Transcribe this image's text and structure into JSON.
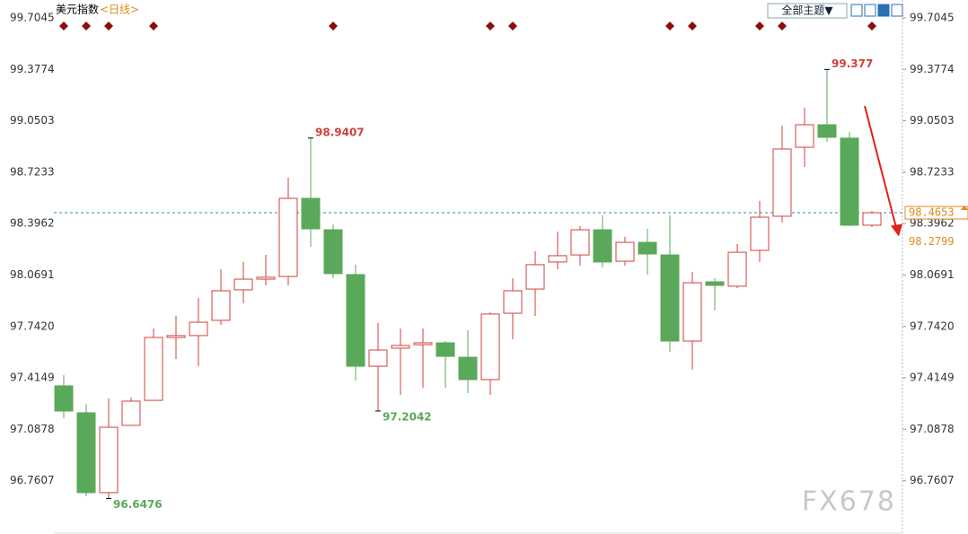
{
  "chart_data": {
    "type": "candlestick",
    "title": "美元指数",
    "subtitle": "<日线>",
    "categories": [
      null,
      null,
      null,
      null,
      null,
      null,
      null,
      null,
      null,
      null,
      null,
      null,
      null,
      null,
      null,
      null,
      null,
      null,
      null,
      null,
      null,
      null,
      null,
      null,
      null,
      null,
      null,
      null,
      null,
      null,
      null,
      null,
      null,
      null,
      null,
      null,
      null
    ],
    "open": [
      97.364,
      97.193,
      96.685,
      97.113,
      97.272,
      97.672,
      97.684,
      97.781,
      97.975,
      98.043,
      98.06,
      98.557,
      98.357,
      98.072,
      97.489,
      97.604,
      97.626,
      97.638,
      97.546,
      97.404,
      97.826,
      97.98,
      98.152,
      98.197,
      98.357,
      98.157,
      98.277,
      98.197,
      97.649,
      98.026,
      97.998,
      98.226,
      98.443,
      98.882,
      99.025,
      98.94,
      98.386
    ],
    "high": [
      97.432,
      97.25,
      97.284,
      97.29,
      97.729,
      97.809,
      97.923,
      98.106,
      98.152,
      98.197,
      98.688,
      98.9407,
      98.391,
      98.135,
      97.764,
      97.729,
      97.729,
      97.649,
      97.718,
      97.832,
      98.049,
      98.22,
      98.346,
      98.38,
      98.449,
      98.312,
      98.363,
      98.449,
      98.089,
      98.049,
      98.266,
      98.54,
      99.019,
      99.134,
      99.377,
      98.98,
      98.477
    ],
    "low": [
      97.158,
      96.662,
      96.6476,
      97.11,
      97.272,
      97.535,
      97.489,
      97.752,
      97.889,
      98.003,
      98.003,
      98.249,
      98.049,
      97.398,
      97.2042,
      97.307,
      97.352,
      97.352,
      97.318,
      97.307,
      97.661,
      97.809,
      98.106,
      98.129,
      98.117,
      98.129,
      98.072,
      97.581,
      97.467,
      97.843,
      97.986,
      98.152,
      98.403,
      98.757,
      98.917,
      98.38,
      98.374
    ],
    "close": [
      97.204,
      96.685,
      97.101,
      97.267,
      97.672,
      97.684,
      97.769,
      97.969,
      98.043,
      98.055,
      98.557,
      98.363,
      98.078,
      97.489,
      97.592,
      97.621,
      97.638,
      97.552,
      97.404,
      97.821,
      97.969,
      98.135,
      98.192,
      98.357,
      98.152,
      98.277,
      98.203,
      97.649,
      98.02,
      98.003,
      98.214,
      98.437,
      98.871,
      99.025,
      98.945,
      98.386,
      98.4653
    ],
    "up_color": "#d0403a",
    "down_color": "#5aa85a",
    "ylim": [
      96.439,
      99.79
    ],
    "yticks": [
      99.7045,
      99.3774,
      99.0503,
      98.7233,
      98.3962,
      98.0691,
      {
        "value": 97.742,
        "label": "97.7420"
      },
      97.4149,
      97.0878,
      96.7607
    ],
    "labeled_highs": [
      11,
      34
    ],
    "labeled_lows": [
      2,
      14
    ],
    "event_days": [
      0,
      1,
      2,
      4,
      12,
      19,
      20,
      27,
      28,
      31,
      32,
      36
    ],
    "last_price": 98.4653,
    "target_price": 98.2799
  },
  "toolbar": {
    "theme_button": "全部主题▼"
  },
  "watermark": "FX678"
}
